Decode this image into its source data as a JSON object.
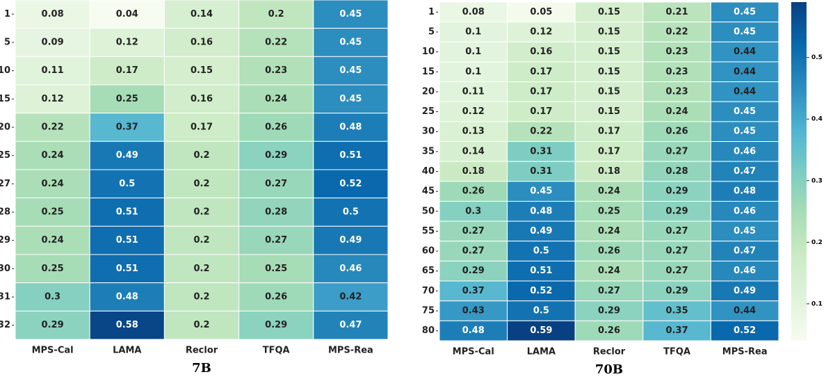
{
  "chart_data": [
    {
      "type": "heatmap",
      "title": "7B",
      "columns": [
        "MPS-Cal",
        "LAMA",
        "Reclor",
        "TFQA",
        "MPS-Rea"
      ],
      "rows": [
        "1",
        "5",
        "10",
        "15",
        "20",
        "25",
        "27",
        "28",
        "29",
        "30",
        "31",
        "32"
      ],
      "values": [
        [
          0.08,
          0.04,
          0.14,
          0.2,
          0.45
        ],
        [
          0.09,
          0.12,
          0.16,
          0.22,
          0.45
        ],
        [
          0.11,
          0.17,
          0.15,
          0.23,
          0.45
        ],
        [
          0.12,
          0.25,
          0.16,
          0.24,
          0.45
        ],
        [
          0.22,
          0.37,
          0.17,
          0.26,
          0.48
        ],
        [
          0.24,
          0.49,
          0.2,
          0.29,
          0.51
        ],
        [
          0.24,
          0.5,
          0.2,
          0.27,
          0.52
        ],
        [
          0.25,
          0.51,
          0.2,
          0.28,
          0.5
        ],
        [
          0.24,
          0.51,
          0.2,
          0.27,
          0.49
        ],
        [
          0.25,
          0.51,
          0.2,
          0.25,
          0.46
        ],
        [
          0.3,
          0.48,
          0.2,
          0.26,
          0.42
        ],
        [
          0.29,
          0.58,
          0.2,
          0.29,
          0.47
        ]
      ]
    },
    {
      "type": "heatmap",
      "title": "70B",
      "columns": [
        "MPS-Cal",
        "LAMA",
        "Reclor",
        "TFQA",
        "MPS-Rea"
      ],
      "rows": [
        "1",
        "5",
        "10",
        "15",
        "20",
        "25",
        "30",
        "35",
        "40",
        "45",
        "50",
        "55",
        "60",
        "65",
        "70",
        "75",
        "80"
      ],
      "values": [
        [
          0.08,
          0.05,
          0.15,
          0.21,
          0.45
        ],
        [
          0.1,
          0.12,
          0.15,
          0.22,
          0.45
        ],
        [
          0.1,
          0.16,
          0.15,
          0.23,
          0.44
        ],
        [
          0.1,
          0.17,
          0.15,
          0.23,
          0.44
        ],
        [
          0.11,
          0.17,
          0.15,
          0.23,
          0.44
        ],
        [
          0.12,
          0.17,
          0.15,
          0.24,
          0.45
        ],
        [
          0.13,
          0.22,
          0.17,
          0.26,
          0.45
        ],
        [
          0.14,
          0.31,
          0.17,
          0.27,
          0.46
        ],
        [
          0.18,
          0.31,
          0.18,
          0.28,
          0.47
        ],
        [
          0.26,
          0.45,
          0.24,
          0.29,
          0.48
        ],
        [
          0.3,
          0.48,
          0.25,
          0.29,
          0.46
        ],
        [
          0.27,
          0.49,
          0.24,
          0.27,
          0.45
        ],
        [
          0.27,
          0.5,
          0.26,
          0.27,
          0.47
        ],
        [
          0.29,
          0.51,
          0.24,
          0.27,
          0.46
        ],
        [
          0.37,
          0.52,
          0.27,
          0.29,
          0.49
        ],
        [
          0.43,
          0.5,
          0.29,
          0.35,
          0.44
        ],
        [
          0.48,
          0.59,
          0.26,
          0.37,
          0.52
        ]
      ]
    }
  ],
  "colorbar": {
    "lim": [
      0.04,
      0.59
    ],
    "ticks": [
      0.1,
      0.2,
      0.3,
      0.4,
      0.5
    ],
    "colormap": [
      "#f7fcf0",
      "#e0f3db",
      "#ccebc5",
      "#a8ddb5",
      "#7bccc4",
      "#4eb3d3",
      "#2b8cbe",
      "#0868ac",
      "#084081"
    ]
  }
}
